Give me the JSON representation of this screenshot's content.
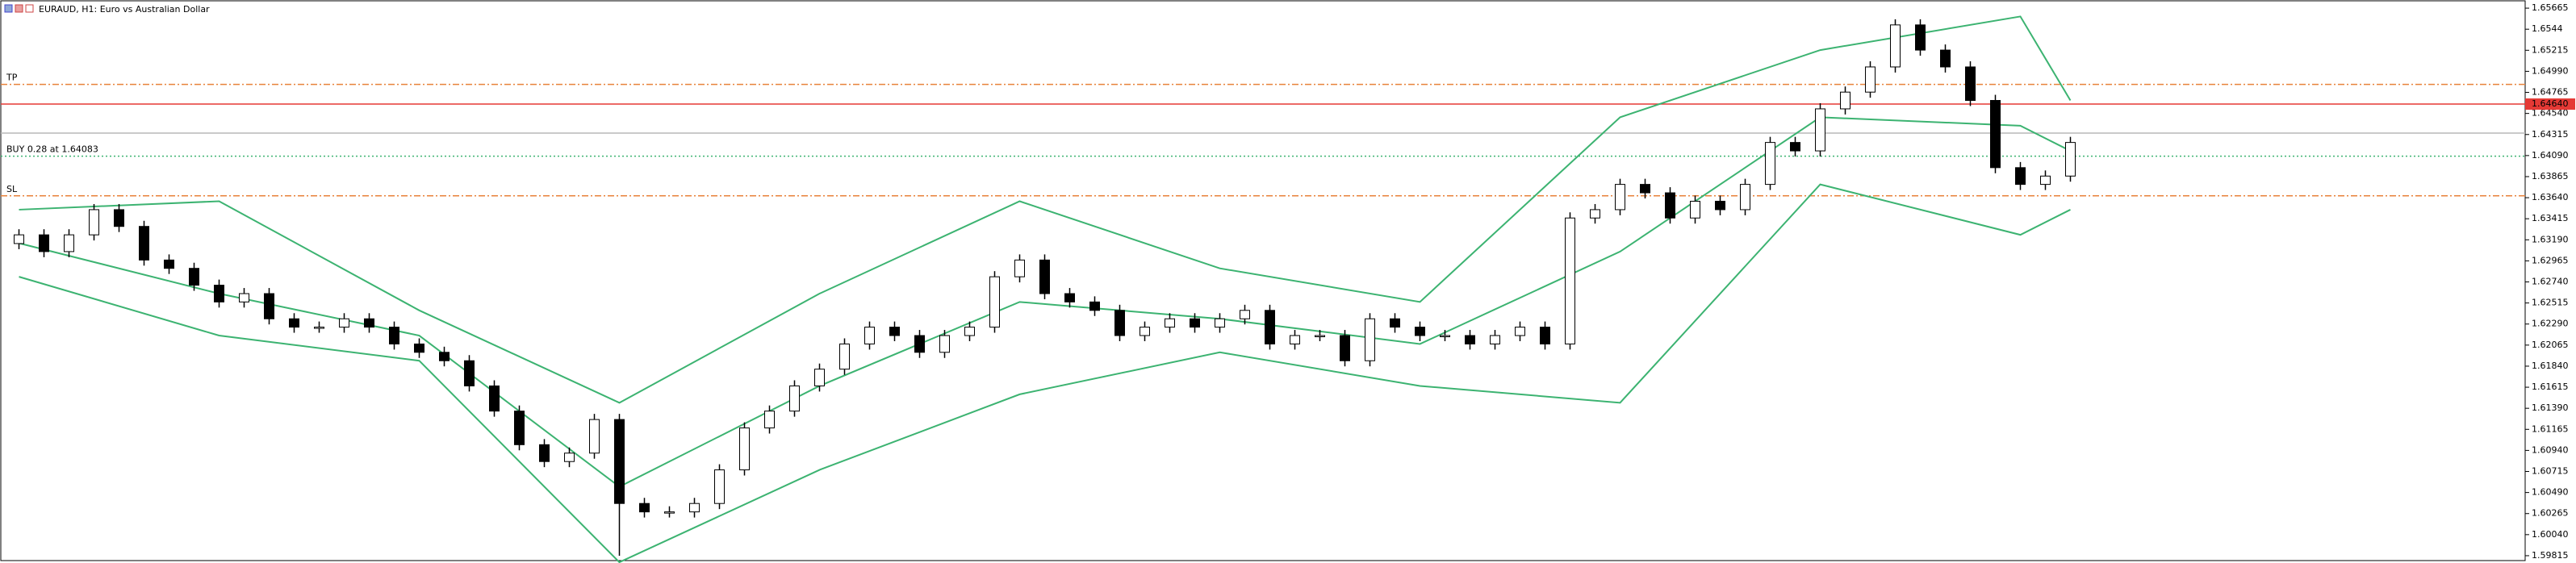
{
  "chart_data": {
    "type": "candlestick",
    "title": "EURAUD, H1:  Euro vs Australian Dollar",
    "ylim": [
      1.59737,
      1.65752
    ],
    "yticks": [
      1.65665,
      1.6544,
      1.65215,
      {
        "value": 1.6499,
        "label": "1.64990"
      },
      1.64765,
      {
        "value": 1.6454,
        "label": "1.64540"
      },
      1.64315,
      {
        "value": 1.6409,
        "label": "1.64090"
      },
      1.63865,
      {
        "value": 1.6364,
        "label": "1.63640"
      },
      1.63415,
      {
        "value": 1.6319,
        "label": "1.63190"
      },
      1.62965,
      {
        "value": 1.6274,
        "label": "1.62740"
      },
      1.62515,
      {
        "value": 1.6229,
        "label": "1.62290"
      },
      1.62065,
      {
        "value": 1.6184,
        "label": "1.61840"
      },
      1.61615,
      {
        "value": 1.6139,
        "label": "1.61390"
      },
      1.61165,
      {
        "value": 1.6094,
        "label": "1.60940"
      },
      1.60715,
      {
        "value": 1.6049,
        "label": "1.60490"
      },
      1.60265,
      {
        "value": 1.6004,
        "label": "1.60040"
      },
      1.59815
    ],
    "up_color": "#ffffff",
    "down_color": "#000000",
    "open": [
      1.6315,
      1.63243,
      1.63064,
      1.63243,
      1.63512,
      1.63333,
      1.62974,
      1.62885,
      1.62705,
      1.62526,
      1.62615,
      1.62346,
      1.62257,
      1.62257,
      1.62346,
      1.62257,
      1.62077,
      1.61988,
      1.61898,
      1.61629,
      1.6136,
      1.61001,
      1.60821,
      1.60911,
      1.6127,
      1.60373,
      1.60283,
      1.60283,
      1.60373,
      1.60732,
      1.6118,
      1.6136,
      1.61629,
      1.61808,
      1.62077,
      1.62257,
      1.62167,
      1.61988,
      1.62167,
      1.62257,
      1.62795,
      1.62974,
      1.62615,
      1.62526,
      1.62436,
      1.62167,
      1.62257,
      1.62346,
      1.62257,
      1.62346,
      1.62436,
      1.62077,
      1.62167,
      1.62167,
      1.61898,
      1.62346,
      1.62257,
      1.62167,
      1.62167,
      1.62077,
      1.62167,
      1.62257,
      1.62077,
      1.63423,
      1.63512,
      1.63782,
      1.63692,
      1.63423,
      1.63602,
      1.63512,
      1.63782,
      1.6423,
      1.6414,
      1.64589,
      1.64768,
      1.65037,
      1.65486,
      1.65217,
      1.65037,
      1.64679,
      1.63961,
      1.63782,
      1.63871
    ],
    "high": [
      1.63303,
      1.63303,
      1.63303,
      1.63572,
      1.63572,
      1.63393,
      1.63034,
      1.62945,
      1.62765,
      1.62675,
      1.62675,
      1.62406,
      1.62317,
      1.62406,
      1.62406,
      1.62317,
      1.62137,
      1.62048,
      1.61958,
      1.61689,
      1.6142,
      1.61061,
      1.60971,
      1.6133,
      1.6133,
      1.60433,
      1.60343,
      1.60433,
      1.60792,
      1.6124,
      1.6142,
      1.61689,
      1.61868,
      1.62137,
      1.62317,
      1.62317,
      1.62227,
      1.62227,
      1.62317,
      1.62855,
      1.63034,
      1.63034,
      1.62675,
      1.62586,
      1.62496,
      1.62317,
      1.62406,
      1.62406,
      1.62406,
      1.62496,
      1.62496,
      1.62227,
      1.62227,
      1.62227,
      1.62406,
      1.62406,
      1.62317,
      1.62227,
      1.62227,
      1.62227,
      1.62317,
      1.62317,
      1.63483,
      1.63572,
      1.63842,
      1.63842,
      1.63752,
      1.63662,
      1.63662,
      1.63842,
      1.6429,
      1.6429,
      1.64649,
      1.64828,
      1.65097,
      1.65546,
      1.65546,
      1.65277,
      1.65097,
      1.64739,
      1.64021,
      1.63931,
      1.6429
    ],
    "low": [
      1.6309,
      1.63004,
      1.63004,
      1.63183,
      1.63273,
      1.62914,
      1.62825,
      1.62645,
      1.62466,
      1.62466,
      1.62286,
      1.62197,
      1.62197,
      1.62197,
      1.62197,
      1.62017,
      1.61928,
      1.61838,
      1.61569,
      1.613,
      1.60941,
      1.60761,
      1.60761,
      1.60851,
      1.59815,
      1.60223,
      1.60223,
      1.60223,
      1.60313,
      1.60672,
      1.6112,
      1.613,
      1.61569,
      1.61748,
      1.62017,
      1.62107,
      1.61928,
      1.61928,
      1.62107,
      1.62197,
      1.62735,
      1.62555,
      1.62466,
      1.62376,
      1.62107,
      1.62107,
      1.62197,
      1.62197,
      1.62197,
      1.62286,
      1.62017,
      1.62017,
      1.62107,
      1.61838,
      1.61838,
      1.62197,
      1.62107,
      1.62107,
      1.62017,
      1.62017,
      1.62107,
      1.62017,
      1.62017,
      1.63363,
      1.63452,
      1.63632,
      1.63363,
      1.63363,
      1.63452,
      1.63452,
      1.63722,
      1.6408,
      1.6408,
      1.64529,
      1.64708,
      1.64977,
      1.65157,
      1.64977,
      1.64619,
      1.63901,
      1.63722,
      1.63722,
      1.63811
    ],
    "close": [
      1.63243,
      1.63064,
      1.63243,
      1.63512,
      1.63333,
      1.62974,
      1.62885,
      1.62705,
      1.62526,
      1.62615,
      1.62346,
      1.62257,
      1.62257,
      1.62346,
      1.62257,
      1.62077,
      1.61988,
      1.61898,
      1.61629,
      1.6136,
      1.61001,
      1.60821,
      1.60911,
      1.6127,
      1.60373,
      1.60283,
      1.60283,
      1.60373,
      1.60732,
      1.6118,
      1.6136,
      1.61629,
      1.61808,
      1.62077,
      1.62257,
      1.62167,
      1.61988,
      1.62167,
      1.62257,
      1.62795,
      1.62974,
      1.62615,
      1.62526,
      1.62436,
      1.62167,
      1.62257,
      1.62346,
      1.62257,
      1.62346,
      1.62436,
      1.62077,
      1.62167,
      1.62167,
      1.61898,
      1.62346,
      1.62257,
      1.62167,
      1.62167,
      1.62077,
      1.62167,
      1.62257,
      1.62077,
      1.63423,
      1.63512,
      1.63782,
      1.63692,
      1.63423,
      1.63602,
      1.63512,
      1.63782,
      1.6423,
      1.6414,
      1.64589,
      1.64768,
      1.65037,
      1.65486,
      1.65217,
      1.65037,
      1.64679,
      1.63961,
      1.63782,
      1.63871,
      1.6423
    ],
    "bands": {
      "color": "#3cb371",
      "x": [
        0,
        8,
        16,
        24,
        32,
        40,
        48,
        56,
        64,
        72,
        80,
        82
      ],
      "series": [
        {
          "values": [
            1.63512,
            1.63602,
            1.62436,
            1.61449,
            1.62615,
            1.63602,
            1.62885,
            1.62526,
            1.64499,
            1.65217,
            1.65576,
            1.64679
          ]
        },
        {
          "values": [
            1.63154,
            1.62615,
            1.62167,
            1.60552,
            1.61629,
            1.62526,
            1.62346,
            1.62077,
            1.63064,
            1.64499,
            1.64409,
            1.6414
          ]
        },
        {
          "values": [
            1.62795,
            1.62167,
            1.61898,
            1.59745,
            1.60732,
            1.61539,
            1.61988,
            1.61629,
            1.61449,
            1.63782,
            1.63243,
            1.63512
          ]
        }
      ]
    },
    "levels": [
      {
        "name": "TP",
        "value": 1.6485,
        "color": "#e8823a",
        "style": "dashdot"
      },
      {
        "value": 1.6464,
        "label": "1.64640",
        "color": "#e53935",
        "style": "solid"
      },
      {
        "value": 1.6433,
        "color": "#b8b8b8",
        "style": "solid"
      },
      {
        "name": "BUY 0.28 at 1.64083",
        "value": 1.64083,
        "color": "#3cb371",
        "style": "dot"
      },
      {
        "name": "SL",
        "value": 1.6366,
        "color": "#e8823a",
        "style": "dashdot"
      }
    ]
  }
}
